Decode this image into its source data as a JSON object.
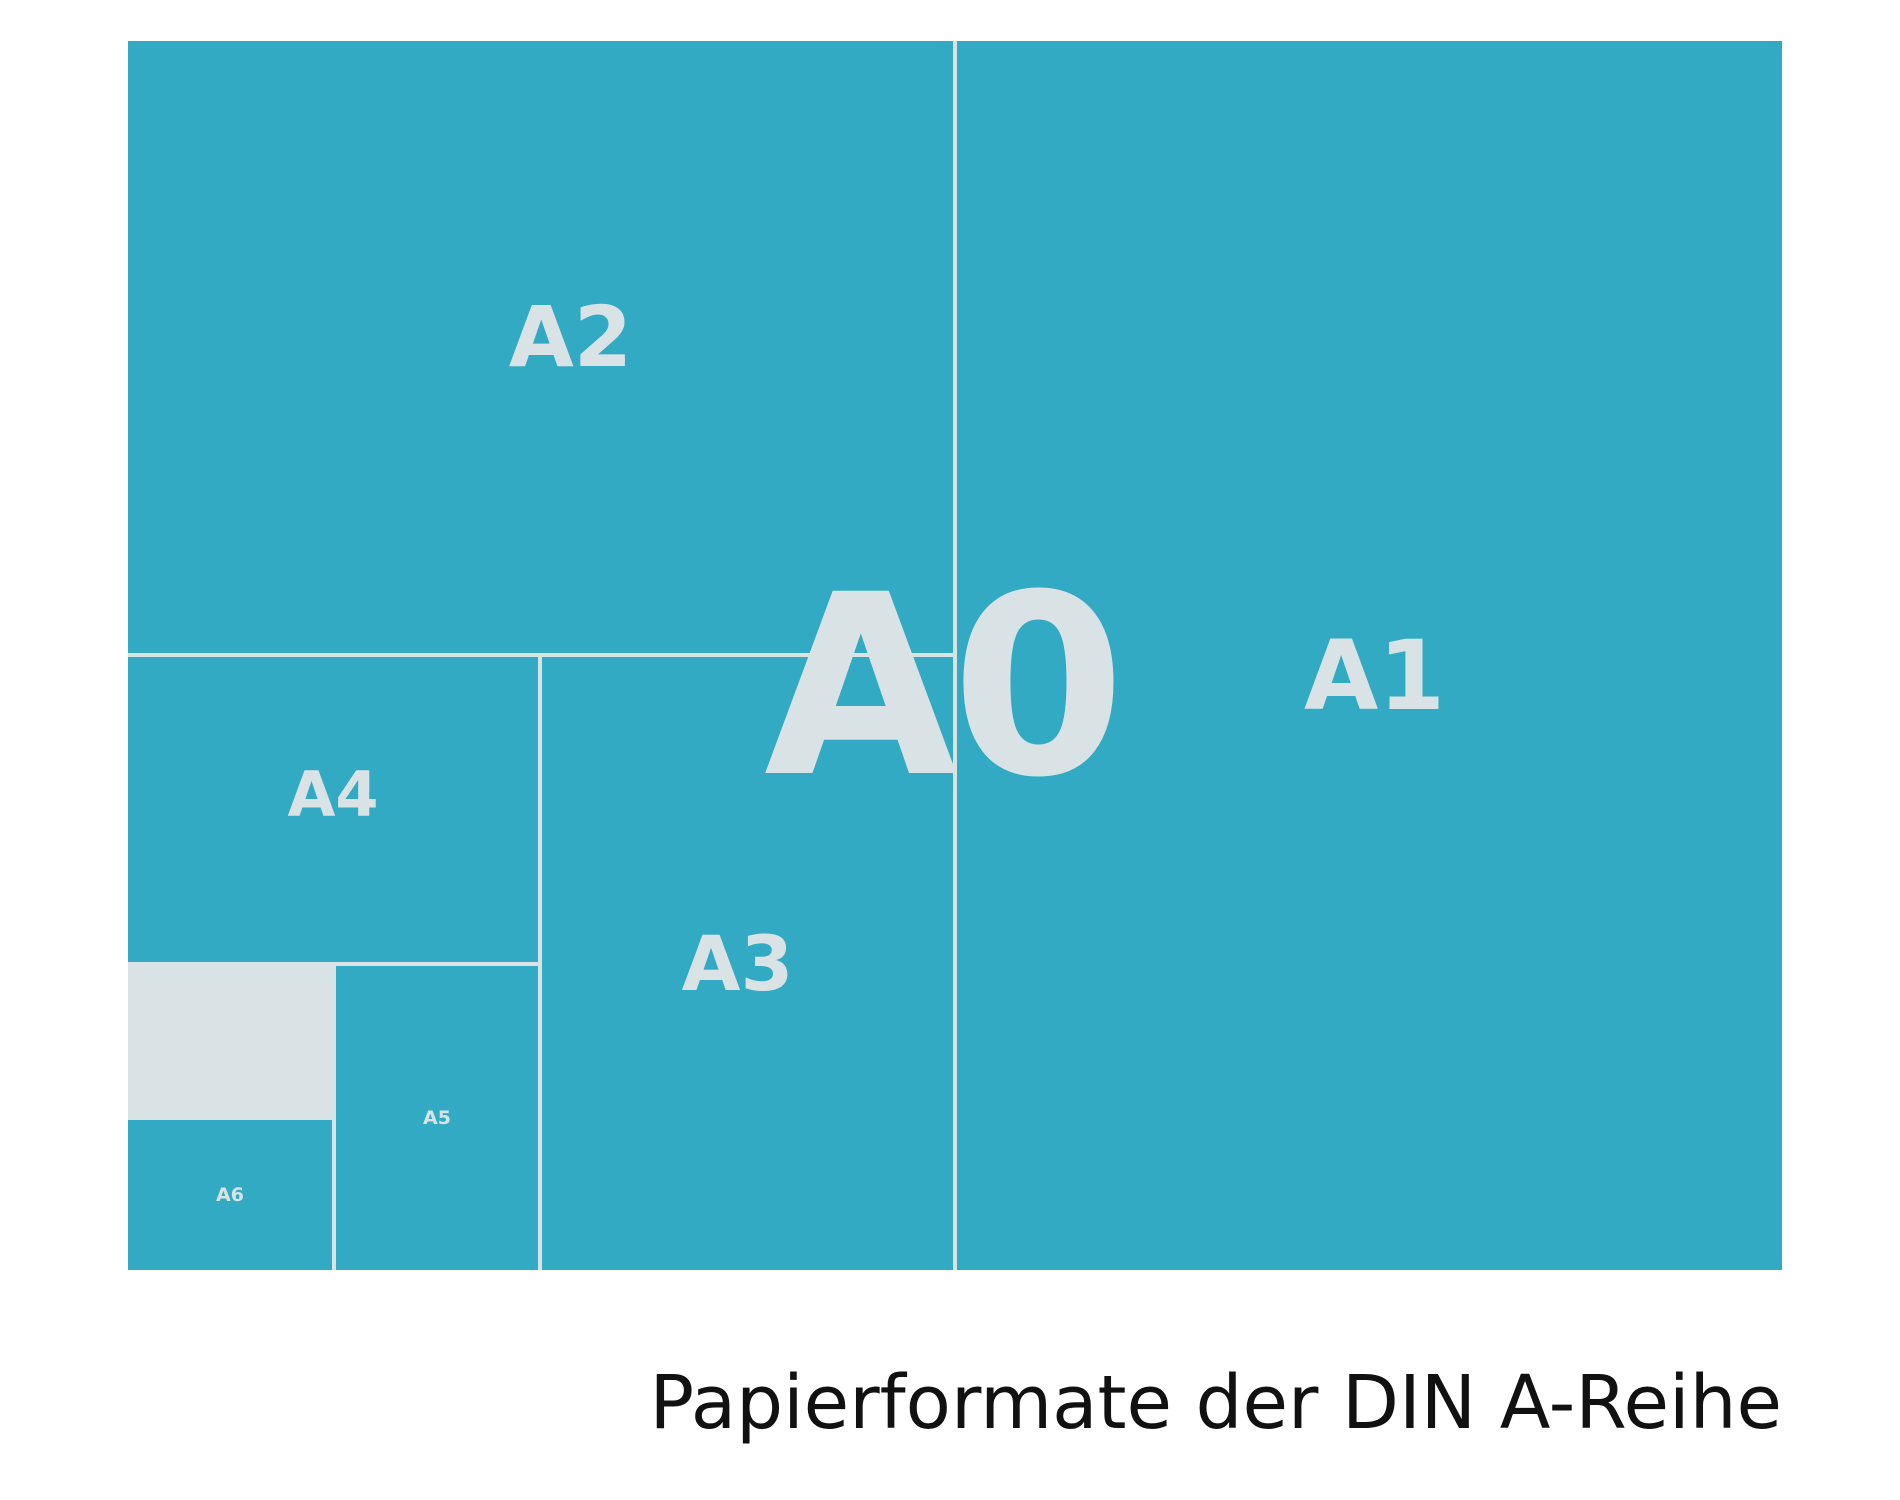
{
  "formats": {
    "a0": "A0",
    "a1": "A1",
    "a2": "A2",
    "a3": "A3",
    "a4": "A4",
    "a5": "A5",
    "a6": "A6"
  },
  "caption": "Papierformate der DIN A-Reihe",
  "colors": {
    "sheet": "#33aac3",
    "divider": "#d9e3e6",
    "label": "#d9e3e6",
    "caption": "#111111"
  }
}
